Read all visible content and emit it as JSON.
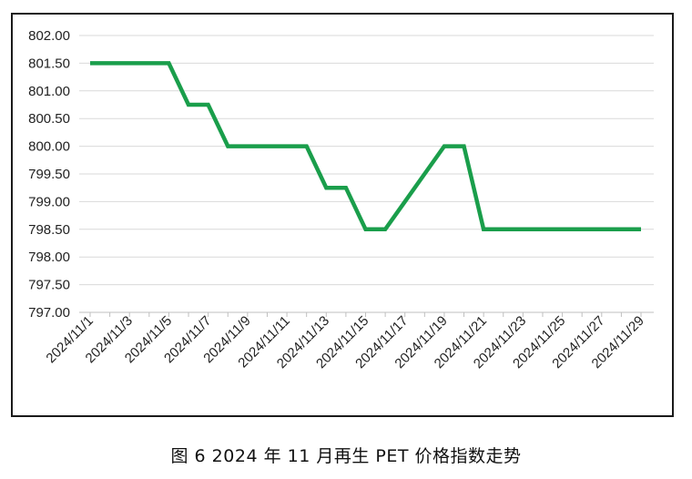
{
  "caption": "图 6  2024 年 11 月再生 PET 价格指数走势",
  "chart_data": {
    "type": "line",
    "title": "",
    "xlabel": "",
    "ylabel": "",
    "ylim": [
      797.0,
      802.0
    ],
    "ytick_labels": [
      "797.00",
      "797.50",
      "798.00",
      "798.50",
      "799.00",
      "799.50",
      "800.00",
      "800.50",
      "801.00",
      "801.50",
      "802.00"
    ],
    "xtick_labels": [
      "2024/11/1",
      "2024/11/3",
      "2024/11/5",
      "2024/11/7",
      "2024/11/9",
      "2024/11/11",
      "2024/11/13",
      "2024/11/15",
      "2024/11/17",
      "2024/11/19",
      "2024/11/21",
      "2024/11/23",
      "2024/11/25",
      "2024/11/27",
      "2024/11/29"
    ],
    "grid": true,
    "legend": "none",
    "line_color": "#1a9e4b",
    "series": [
      {
        "x": [
          "2024/11/1",
          "2024/11/2",
          "2024/11/3",
          "2024/11/4",
          "2024/11/5",
          "2024/11/6",
          "2024/11/7",
          "2024/11/8",
          "2024/11/9",
          "2024/11/10",
          "2024/11/11",
          "2024/11/12",
          "2024/11/13",
          "2024/11/14",
          "2024/11/15",
          "2024/11/16",
          "2024/11/17",
          "2024/11/18",
          "2024/11/19",
          "2024/11/20",
          "2024/11/21",
          "2024/11/22",
          "2024/11/23",
          "2024/11/24",
          "2024/11/25",
          "2024/11/26",
          "2024/11/27",
          "2024/11/28",
          "2024/11/29"
        ],
        "values": [
          801.5,
          801.5,
          801.5,
          801.5,
          801.5,
          800.75,
          800.75,
          800.0,
          800.0,
          800.0,
          800.0,
          800.0,
          799.25,
          799.25,
          798.5,
          798.5,
          799.0,
          799.5,
          800.0,
          800.0,
          798.5,
          798.5,
          798.5,
          798.5,
          798.5,
          798.5,
          798.5,
          798.5,
          798.5
        ]
      }
    ]
  }
}
